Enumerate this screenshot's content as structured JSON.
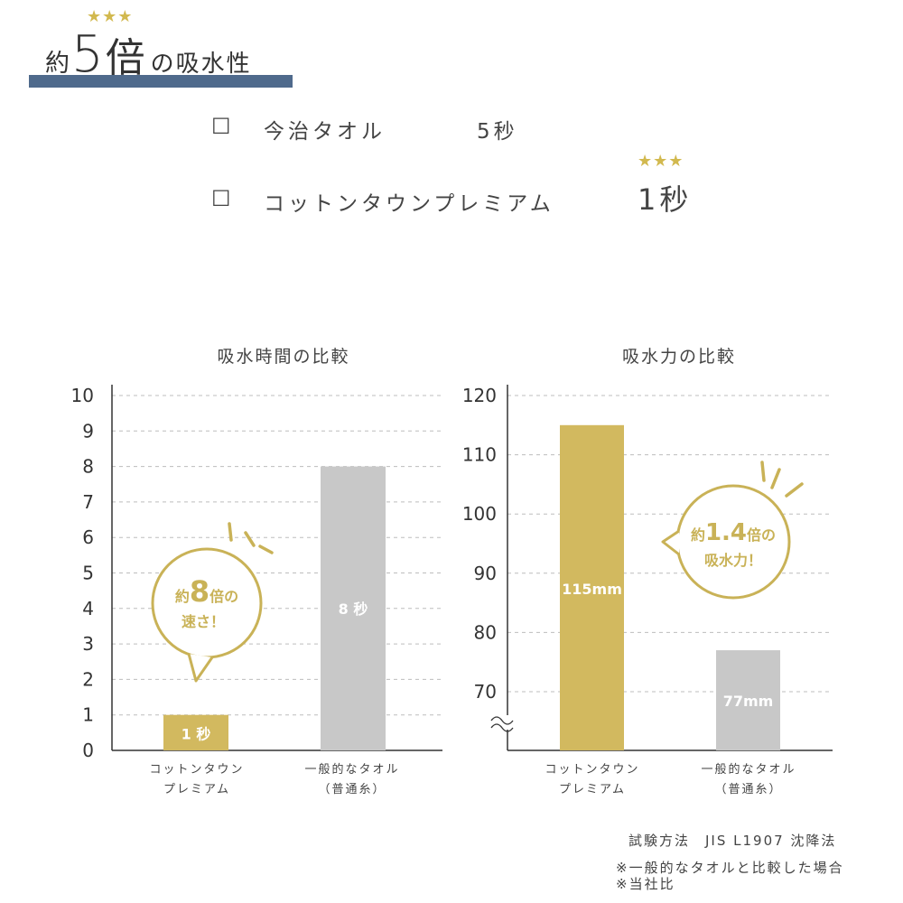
{
  "header": {
    "stars": "★★★",
    "prefix": "約",
    "number": "5",
    "suffix": "倍",
    "tail": "の吸水性"
  },
  "comparison": [
    {
      "checkbox": "☐",
      "label": "今治タオル",
      "value": "5秒"
    },
    {
      "checkbox": "☐",
      "label": "コットンタウンプレミアム",
      "value": "1秒",
      "stars": "★★★"
    }
  ],
  "chart_data": [
    {
      "type": "bar",
      "title": "吸水時間の比較",
      "categories": [
        "コットンタウン\nプレミアム",
        "一般的なタオル\n（普通糸）"
      ],
      "values": [
        1,
        8
      ],
      "data_labels": [
        "1 秒",
        "8 秒"
      ],
      "ylim": [
        0,
        10
      ],
      "yticks": [
        0,
        1,
        2,
        3,
        4,
        5,
        6,
        7,
        8,
        9,
        10
      ],
      "grid": true,
      "colors": [
        "#d2b95f",
        "#c8c8c8"
      ],
      "callout": {
        "pre": "約",
        "num": "8",
        "post": "倍の",
        "line2": "速さ！"
      }
    },
    {
      "type": "bar",
      "title": "吸水力の比較",
      "categories": [
        "コットンタウン\nプレミアム",
        "一般的なタオル\n（普通糸）"
      ],
      "values": [
        115,
        77
      ],
      "data_labels": [
        "115mm",
        "77mm"
      ],
      "ylim": [
        70,
        120
      ],
      "yticks": [
        70,
        80,
        90,
        100,
        110,
        120
      ],
      "axis_break": true,
      "grid": true,
      "colors": [
        "#d2b95f",
        "#c8c8c8"
      ],
      "callout": {
        "pre": "約",
        "num": "1.4",
        "post": "倍の",
        "line2": "吸水力！"
      }
    }
  ],
  "footer": {
    "method": "試験方法　JIS L1907 沈降法",
    "note1": "※一般的なタオルと比較した場合",
    "note2": "※当社比"
  }
}
